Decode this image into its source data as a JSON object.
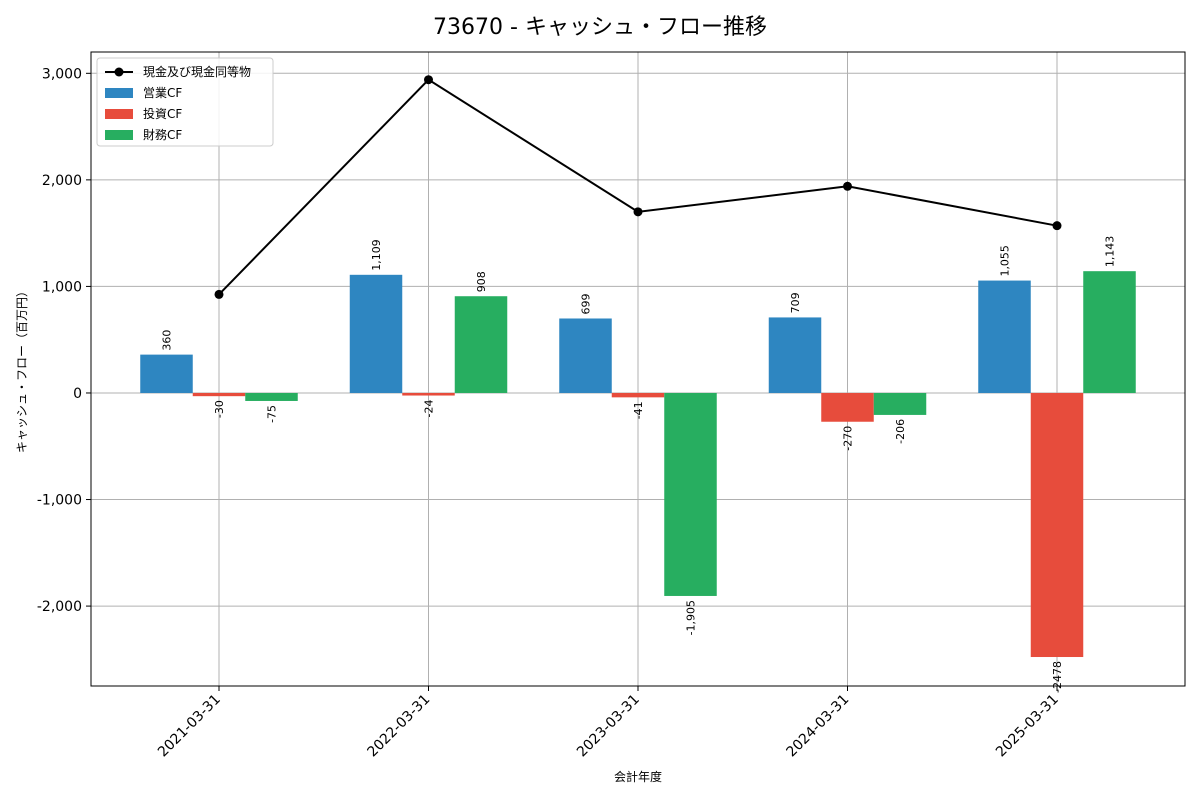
{
  "chart_data": {
    "type": "bar",
    "title": "73670 - キャッシュ・フロー推移",
    "xlabel": "会計年度",
    "ylabel": "キャッシュ・フロー（百万円）",
    "categories": [
      "2021-03-31",
      "2022-03-31",
      "2023-03-31",
      "2024-03-31",
      "2025-03-31"
    ],
    "ylim": [
      -2750,
      3200
    ],
    "yticks": [
      -2000,
      -1000,
      0,
      1000,
      2000,
      3000
    ],
    "ytick_labels": [
      "-2,000",
      "-1,000",
      "0",
      "1,000",
      "2,000",
      "3,000"
    ],
    "grid": true,
    "legend_position": "top-left",
    "series": [
      {
        "name": "営業CF",
        "kind": "bar",
        "color": "#2e86c1",
        "values": [
          360,
          1109,
          699,
          709,
          1055
        ],
        "labels": [
          "360",
          "1,109",
          "699",
          "709",
          "1,055"
        ]
      },
      {
        "name": "投資CF",
        "kind": "bar",
        "color": "#e74c3c",
        "values": [
          -30,
          -24,
          -41,
          -270,
          -2478
        ],
        "labels": [
          "-30",
          "-24",
          "-41",
          "-270",
          "-2478"
        ]
      },
      {
        "name": "財務CF",
        "kind": "bar",
        "color": "#27ae60",
        "values": [
          -75,
          908,
          -1905,
          -206,
          1143
        ],
        "labels": [
          "-75",
          "908",
          "-1,905",
          "-206",
          "1,143"
        ]
      }
    ],
    "line": {
      "name": "現金及び現金同等物",
      "kind": "line",
      "color": "#000000",
      "values": [
        925,
        2940,
        1700,
        1940,
        1570
      ]
    }
  }
}
